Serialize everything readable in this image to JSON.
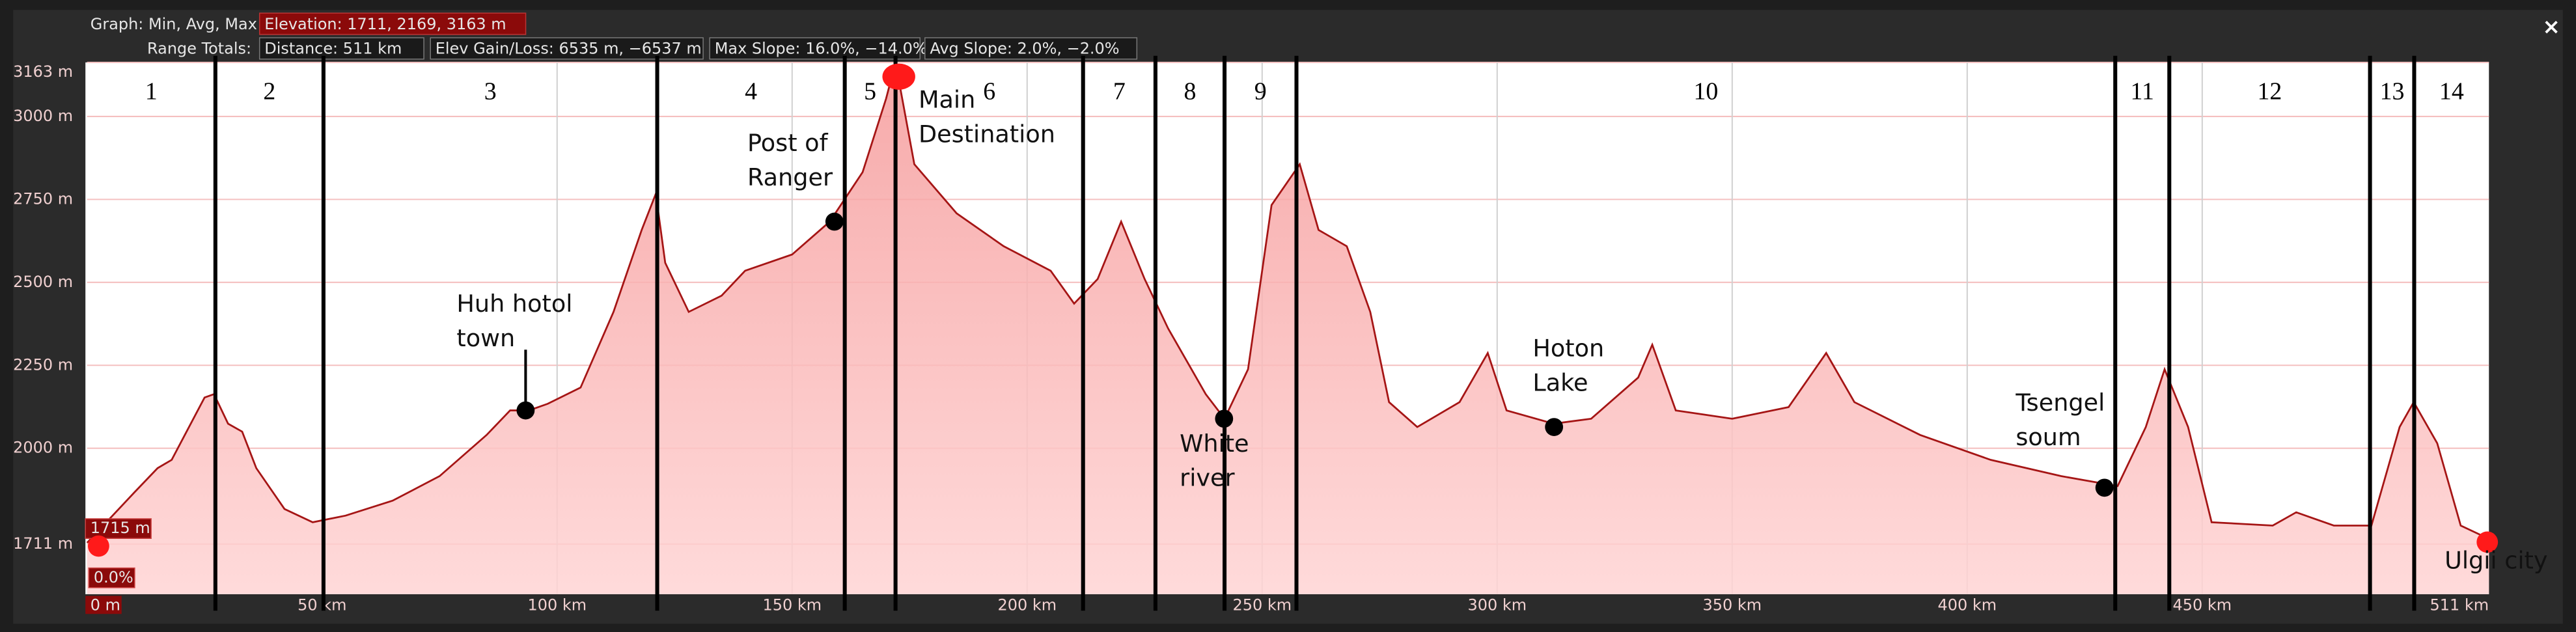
{
  "header": {
    "graph_label": "Graph: Min, Avg, Max",
    "elevation": "Elevation: 1711, 2169, 3163 m",
    "range_label": "Range Totals:",
    "distance": "Distance: 511 km",
    "gain_loss": "Elev Gain/Loss: 6535 m, −6537 m",
    "max_slope": "Max Slope: 16.0%, −14.0%",
    "avg_slope": "Avg Slope: 2.0%, −2.0%",
    "close": "×",
    "start_elevation": "1715 m",
    "start_slope": "0.0%",
    "start_distance": "0 m"
  },
  "chart_data": {
    "type": "area",
    "xlim": [
      0,
      511
    ],
    "ylim": [
      1560,
      3163
    ],
    "xticks": [
      {
        "value": 50,
        "label": "50 km"
      },
      {
        "value": 100,
        "label": "100 km"
      },
      {
        "value": 150,
        "label": "150 km"
      },
      {
        "value": 200,
        "label": "200 km"
      },
      {
        "value": 250,
        "label": "250 km"
      },
      {
        "value": 300,
        "label": "300 km"
      },
      {
        "value": 350,
        "label": "350 km"
      },
      {
        "value": 400,
        "label": "400 km"
      },
      {
        "value": 450,
        "label": "450 km"
      },
      {
        "value": 511,
        "label": "511 km"
      }
    ],
    "yticks": [
      {
        "value": 1711,
        "label": "1711 m"
      },
      {
        "value": 2000,
        "label": "2000 m"
      },
      {
        "value": 2250,
        "label": "2250 m"
      },
      {
        "value": 2500,
        "label": "2500 m"
      },
      {
        "value": 2750,
        "label": "2750 m"
      },
      {
        "value": 3000,
        "label": "3000 m"
      },
      {
        "value": 3163,
        "label": "3163 m"
      }
    ],
    "grid": true,
    "series": [
      {
        "name": "Elevation",
        "color": "#a51515",
        "fill": "#f7b3b3",
        "x": [
          0,
          10,
          15,
          18,
          25,
          27,
          30,
          33,
          36,
          42,
          48,
          55,
          65,
          75,
          85,
          90,
          94,
          98,
          105,
          112,
          118,
          121,
          123,
          128,
          135,
          140,
          150,
          158,
          165,
          170,
          172,
          176,
          185,
          195,
          205,
          210,
          215,
          220,
          225,
          230,
          238,
          242,
          247,
          252,
          258,
          262,
          268,
          273,
          277,
          283,
          292,
          298,
          302,
          312,
          320,
          330,
          333,
          338,
          350,
          362,
          370,
          376,
          390,
          405,
          420,
          432,
          438,
          442,
          447,
          452,
          465,
          470,
          478,
          486,
          492,
          495,
          500,
          505,
          511
        ],
        "values": [
          1715,
          1866,
          1940,
          1965,
          2153,
          2163,
          2074,
          2050,
          1940,
          1817,
          1777,
          1797,
          1842,
          1916,
          2040,
          2114,
          2114,
          2134,
          2183,
          2411,
          2658,
          2767,
          2559,
          2411,
          2460,
          2535,
          2584,
          2683,
          2832,
          3054,
          3163,
          2856,
          2708,
          2609,
          2535,
          2436,
          2510,
          2683,
          2510,
          2361,
          2163,
          2089,
          2238,
          2733,
          2856,
          2658,
          2609,
          2411,
          2139,
          2064,
          2139,
          2287,
          2114,
          2074,
          2089,
          2213,
          2312,
          2114,
          2089,
          2124,
          2287,
          2139,
          2040,
          1965,
          1916,
          1886,
          2064,
          2238,
          2064,
          1777,
          1767,
          1807,
          1767,
          1767,
          2064,
          2139,
          2015,
          1767,
          1727
        ]
      }
    ],
    "dividers": [
      27.3,
      50.3,
      121.3,
      161.2,
      172,
      211.9,
      227.3,
      242,
      257.3,
      431.5,
      443,
      485.7,
      495.1
    ],
    "segment_labels": [
      "1",
      "2",
      "3",
      "4",
      "5",
      "6",
      "7",
      "8",
      "9",
      "10",
      "11",
      "12",
      "13",
      "14"
    ],
    "annotations": [
      {
        "lines": [
          "Huh hotol",
          "town"
        ],
        "x": 93.3,
        "y": 2114,
        "color": "#000000"
      },
      {
        "lines": [
          "Post of",
          "Ranger"
        ],
        "x": 159,
        "y": 2683,
        "color": "#000000"
      },
      {
        "lines": [
          "Main",
          "Destination"
        ],
        "x": 172.7,
        "y": 3120,
        "color": "#ff1a1a"
      },
      {
        "lines": [
          "White",
          "river"
        ],
        "x": 241.9,
        "y": 2089,
        "color": "#000000"
      },
      {
        "lines": [
          "Hoton",
          "Lake"
        ],
        "x": 312.1,
        "y": 2064,
        "color": "#000000"
      },
      {
        "lines": [
          "Tsengel",
          "soum"
        ],
        "x": 429.2,
        "y": 1881,
        "color": "#000000"
      },
      {
        "lines": [
          "Ulgii city"
        ],
        "x": 511,
        "y": 1727,
        "color": "#ff1a1a"
      }
    ]
  }
}
